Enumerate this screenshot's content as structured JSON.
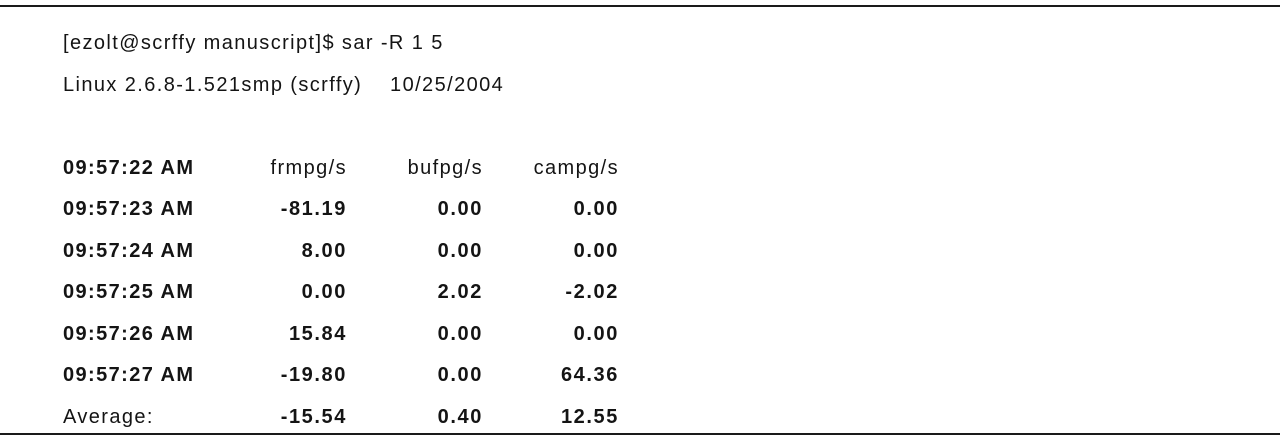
{
  "terminal": {
    "prompt_line": "[ezolt@scrffy manuscript]$ sar -R 1 5",
    "system_line": "Linux 2.6.8-1.521smp (scrffy)    10/25/2004",
    "columns": {
      "time": "09:57:22 AM",
      "frmpg": "frmpg/s",
      "bufpg": "bufpg/s",
      "campg": "campg/s"
    },
    "rows": [
      {
        "time": "09:57:23 AM",
        "frmpg": "-81.19",
        "bufpg": "0.00",
        "campg": "0.00"
      },
      {
        "time": "09:57:24 AM",
        "frmpg": "8.00",
        "bufpg": "0.00",
        "campg": "0.00"
      },
      {
        "time": "09:57:25 AM",
        "frmpg": "0.00",
        "bufpg": "2.02",
        "campg": "-2.02"
      },
      {
        "time": "09:57:26 AM",
        "frmpg": "15.84",
        "bufpg": "0.00",
        "campg": "0.00"
      },
      {
        "time": "09:57:27 AM",
        "frmpg": "-19.80",
        "bufpg": "0.00",
        "campg": "64.36"
      }
    ],
    "average": {
      "label": "Average:",
      "frmpg": "-15.54",
      "bufpg": "0.40",
      "campg": "12.55"
    }
  }
}
